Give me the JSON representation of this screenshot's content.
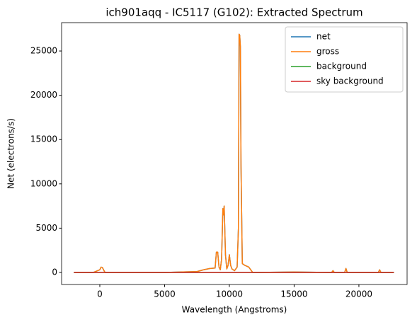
{
  "chart_data": {
    "type": "line",
    "title": "ich901aqq - IC5117 (G102): Extracted Spectrum",
    "xlabel": "Wavelength (Angstroms)",
    "ylabel": "Net (electrons/s)",
    "x": [
      -2000,
      -500,
      0,
      100,
      200,
      400,
      1000,
      5000,
      7500,
      8000,
      8500,
      8900,
      9000,
      9100,
      9200,
      9300,
      9400,
      9500,
      9550,
      9600,
      9700,
      9800,
      9900,
      10000,
      10100,
      10200,
      10400,
      10600,
      10700,
      10750,
      10800,
      10850,
      10900,
      11000,
      11200,
      11500,
      11800,
      12000,
      15000,
      17900,
      18000,
      18100,
      18900,
      19000,
      19100,
      21500,
      21600,
      21700,
      22700
    ],
    "series": [
      {
        "name": "net",
        "color": "#1f77b4",
        "values": [
          0,
          0,
          300,
          600,
          550,
          0,
          0,
          0,
          100,
          300,
          450,
          500,
          2300,
          2300,
          600,
          300,
          1500,
          7200,
          6500,
          7500,
          2000,
          400,
          800,
          2000,
          800,
          400,
          200,
          600,
          5000,
          26900,
          26800,
          25500,
          12000,
          1000,
          800,
          600,
          0,
          0,
          50,
          0,
          200,
          0,
          0,
          450,
          0,
          0,
          300,
          0,
          0
        ]
      },
      {
        "name": "gross",
        "color": "#ff7f0e",
        "values": [
          0,
          0,
          300,
          600,
          550,
          0,
          0,
          0,
          100,
          300,
          450,
          500,
          2300,
          2300,
          600,
          300,
          1500,
          7200,
          6500,
          7500,
          2000,
          400,
          800,
          2000,
          800,
          400,
          200,
          600,
          5000,
          26900,
          26800,
          25500,
          12000,
          1000,
          800,
          600,
          0,
          0,
          50,
          0,
          200,
          0,
          0,
          450,
          0,
          0,
          300,
          0,
          0
        ]
      },
      {
        "name": "background",
        "color": "#2ca02c",
        "values": [
          0,
          0,
          0,
          0,
          0,
          0,
          0,
          0,
          0,
          0,
          0,
          0,
          0,
          0,
          0,
          0,
          0,
          0,
          0,
          0,
          0,
          0,
          0,
          0,
          0,
          0,
          0,
          0,
          0,
          0,
          0,
          0,
          0,
          0,
          0,
          0,
          0,
          0,
          0,
          0,
          0,
          0,
          0,
          0,
          0,
          0,
          0,
          0,
          0
        ]
      },
      {
        "name": "sky background",
        "color": "#d62728",
        "values": [
          0,
          0,
          0,
          0,
          0,
          0,
          0,
          0,
          0,
          0,
          0,
          0,
          0,
          0,
          0,
          0,
          0,
          0,
          0,
          0,
          0,
          0,
          0,
          0,
          0,
          0,
          0,
          0,
          0,
          0,
          0,
          0,
          0,
          0,
          0,
          0,
          0,
          0,
          0,
          0,
          0,
          0,
          0,
          0,
          0,
          0,
          0,
          0,
          0
        ]
      }
    ],
    "xlim": [
      -2950,
      23720
    ],
    "ylim": [
      -1360,
      28200
    ],
    "xticks": [
      0,
      5000,
      10000,
      15000,
      20000
    ],
    "yticks": [
      0,
      5000,
      10000,
      15000,
      20000,
      25000
    ],
    "legend": "upper right"
  }
}
